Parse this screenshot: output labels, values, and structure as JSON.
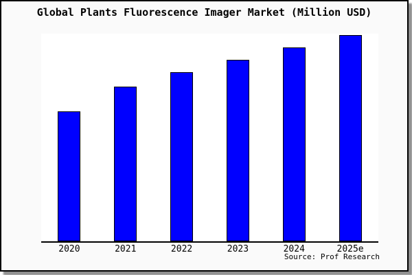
{
  "page": {
    "title": "Global Plants Fluorescence Imager Market (Million USD)",
    "source_label": "Source: Prof Research"
  },
  "chart_data": {
    "type": "bar",
    "title": "Global Plants Fluorescence Imager Market (Million USD)",
    "categories": [
      "2020",
      "2021",
      "2022",
      "2023",
      "2024",
      "2025e"
    ],
    "values": [
      63,
      75,
      82,
      88,
      94,
      100
    ],
    "value_scale_note": "no y-axis ticks or value labels shown; values estimated relative to tallest bar (2025e = 100)",
    "xlabel": "",
    "ylabel": "",
    "ylim": [
      0,
      100
    ],
    "grid": false,
    "legend": false,
    "bar_color": "#0000ff",
    "bar_border_color": "#000000",
    "axis_color": "#000000",
    "source_note": "Source: Prof Research"
  }
}
